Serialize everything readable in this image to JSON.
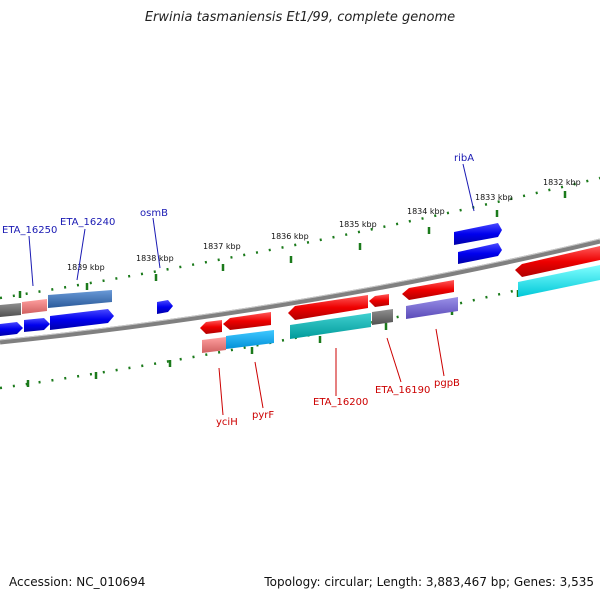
{
  "title": "Erwinia tasmaniensis Et1/99, complete genome",
  "footer": {
    "accession": "Accession: NC_010694",
    "topology": "Topology: circular; Length: 3,883,467 bp; Genes: 3,535"
  },
  "colors": {
    "backbone": "#808080",
    "tick": "#1b7a1b",
    "plus_label": "#1a1ab3",
    "minus_label": "#cc0000"
  },
  "map": {
    "kbp_labels": [
      "1832 kbp",
      "1833 kbp",
      "1834 kbp",
      "1835 kbp",
      "1836 kbp",
      "1837 kbp",
      "1838 kbp",
      "1839 kbp"
    ],
    "gene_labels": [
      {
        "text": "ribA",
        "strand": "+"
      },
      {
        "text": "osmB",
        "strand": "+"
      },
      {
        "text": "ETA_16240",
        "strand": "+"
      },
      {
        "text": "ETA_16250",
        "strand": "+"
      },
      {
        "text": "yciH",
        "strand": "-"
      },
      {
        "text": "pyrF",
        "strand": "-"
      },
      {
        "text": "ETA_16200",
        "strand": "-"
      },
      {
        "text": "ETA_16190",
        "strand": "-"
      },
      {
        "text": "pgpB",
        "strand": "-"
      }
    ]
  }
}
